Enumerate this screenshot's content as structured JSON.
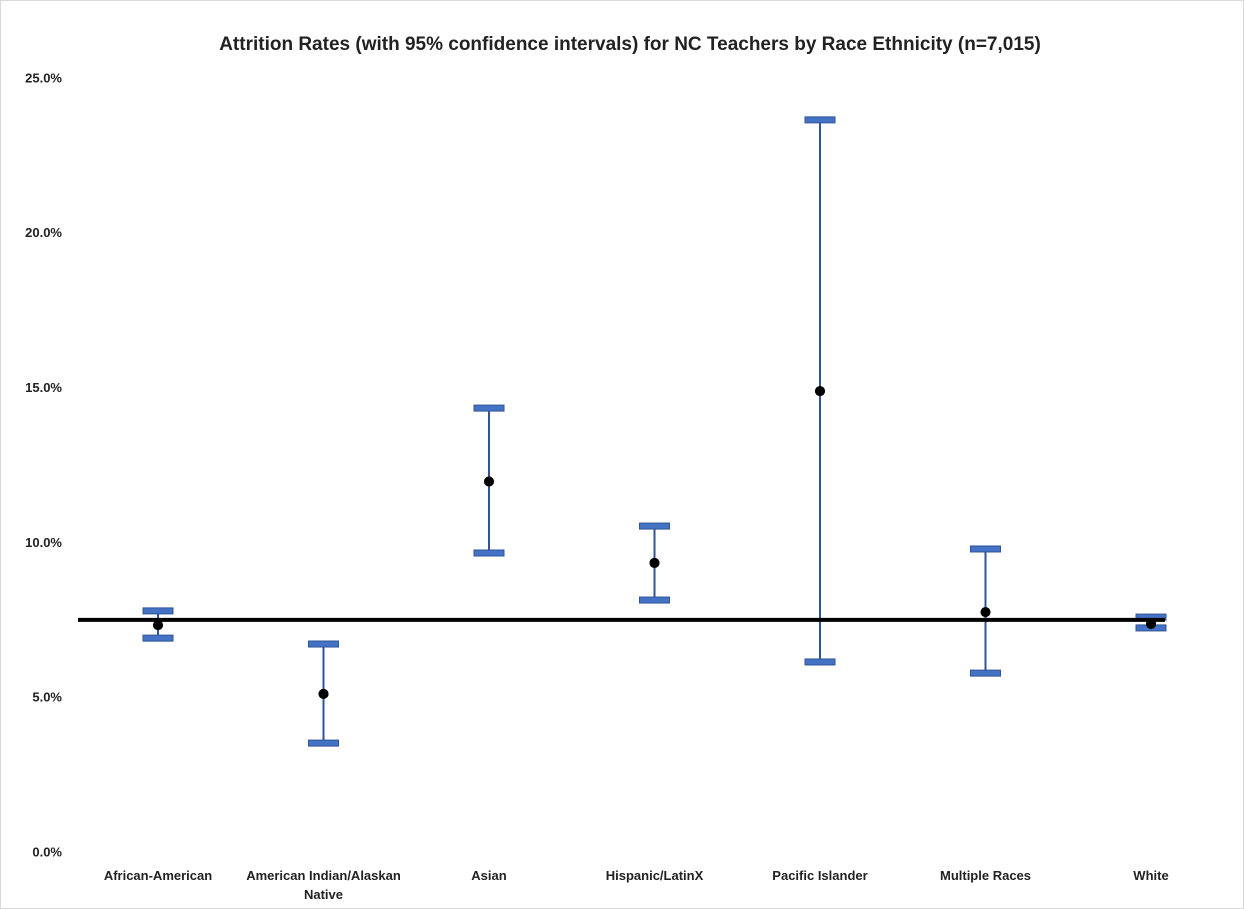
{
  "chart_data": {
    "type": "errorbar",
    "title": "Attrition Rates (with 95% confidence intervals) for NC Teachers by Race Ethnicity (n=7,015)",
    "categories": [
      "African-American",
      "American Indian/Alaskan Native",
      "Asian",
      "Hispanic/LatinX",
      "Pacific Islander",
      "Multiple Races",
      "White"
    ],
    "values": [
      7.36,
      5.14,
      12.0,
      9.37,
      14.92,
      7.78,
      7.4
    ],
    "lower": [
      6.94,
      3.55,
      9.69,
      8.17,
      6.17,
      5.81,
      7.27
    ],
    "upper": [
      7.82,
      6.75,
      14.37,
      10.56,
      23.68,
      9.82,
      7.62
    ],
    "average": 7.53,
    "color": "#4472c4",
    "point_color": "#000000",
    "ylim": [
      0,
      25
    ],
    "yticks": [
      {
        "value": 0,
        "label": "0.0%"
      },
      {
        "value": 5,
        "label": "5.0%"
      },
      {
        "value": 10,
        "label": "10.0%"
      },
      {
        "value": 15,
        "label": "15.0%"
      },
      {
        "value": 20,
        "label": "20.0%"
      },
      {
        "value": 25,
        "label": "25.0%"
      }
    ],
    "grid": false
  }
}
